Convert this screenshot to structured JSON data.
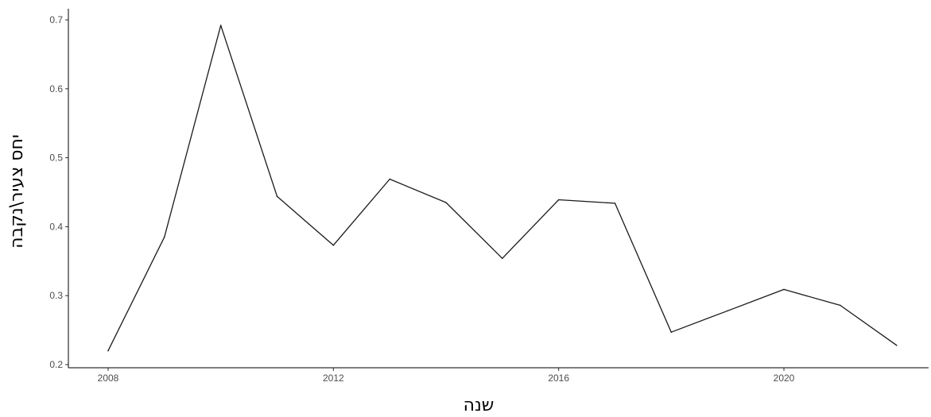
{
  "chart_data": {
    "type": "line",
    "title": "",
    "xlabel": "שנה",
    "ylabel": "יחס צעיר\\נקבה",
    "xlim": [
      2007.8,
      2022.2
    ],
    "ylim": [
      0.2,
      0.7
    ],
    "x_ticks": [
      2008,
      2012,
      2016,
      2020
    ],
    "y_ticks": [
      0.2,
      0.3,
      0.4,
      0.5,
      0.6,
      0.7
    ],
    "x_tick_labels": [
      "2008",
      "2012",
      "2016",
      "2020"
    ],
    "y_tick_labels": [
      "0.2",
      "0.3",
      "0.4",
      "0.5",
      "0.6",
      "0.7"
    ],
    "grid": false,
    "legend": "none",
    "line_color": "#1a1a1a",
    "series": [
      {
        "x": [
          2008,
          2009,
          2010,
          2011,
          2012,
          2013,
          2014,
          2015,
          2016,
          2017,
          2018,
          2019,
          2020,
          2021,
          2022
        ],
        "y": [
          0.22,
          0.385,
          0.692,
          0.444,
          0.373,
          0.469,
          0.435,
          0.354,
          0.439,
          0.434,
          0.247,
          0.278,
          0.309,
          0.286,
          0.228
        ]
      }
    ]
  }
}
